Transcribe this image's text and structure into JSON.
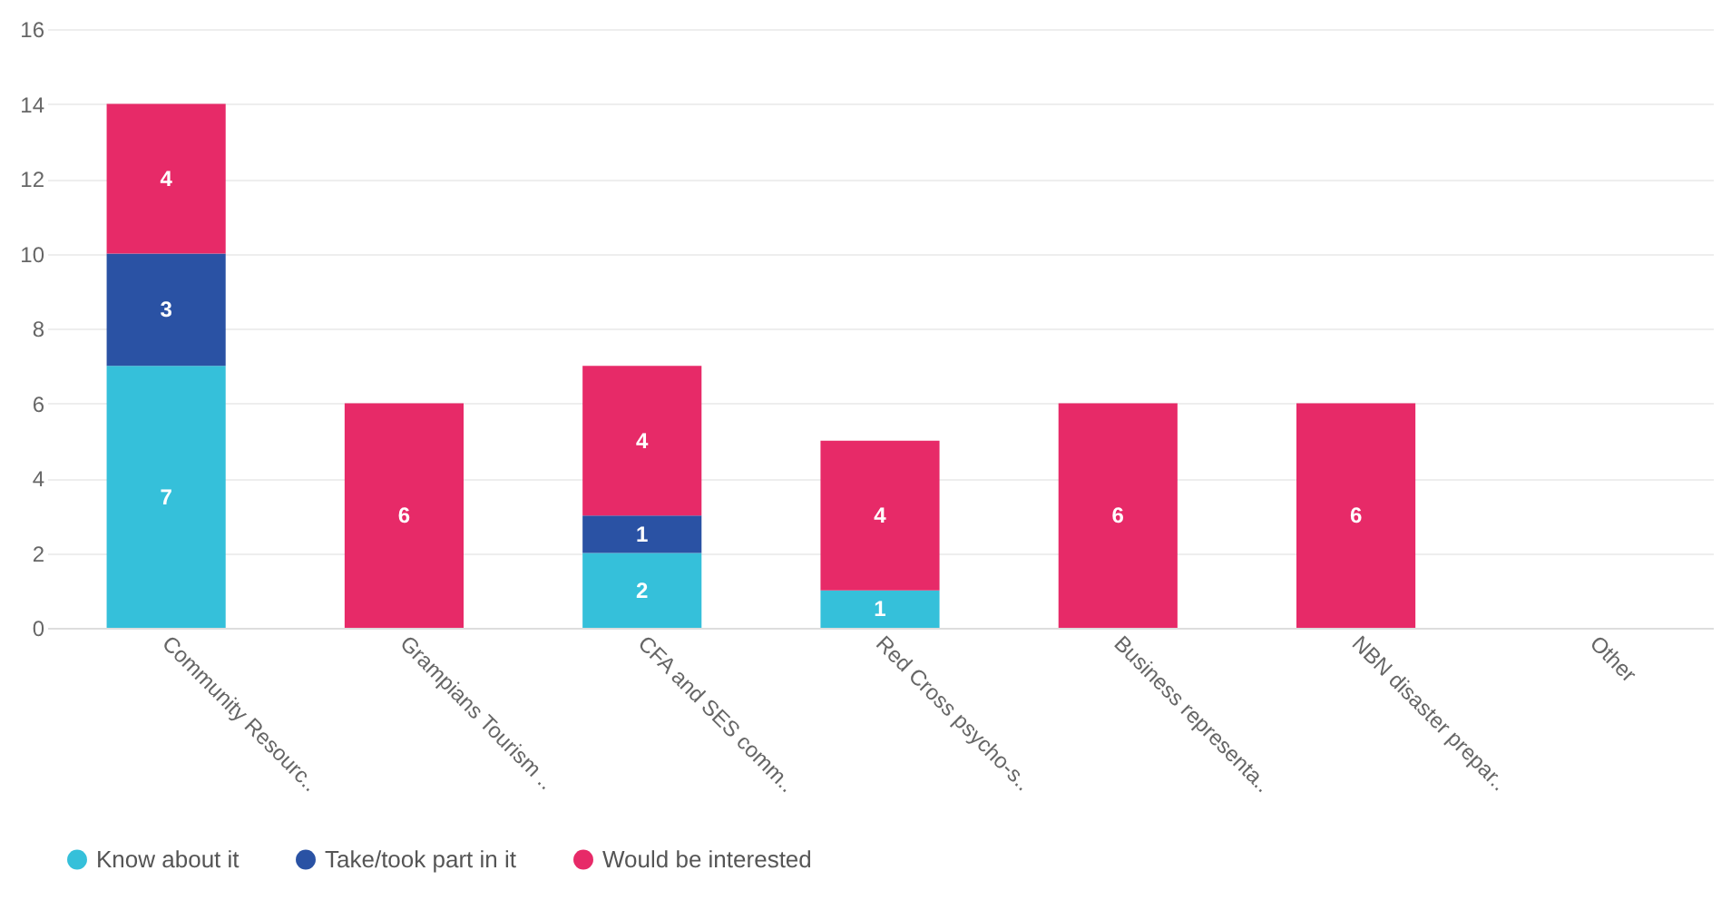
{
  "chart_data": {
    "type": "bar",
    "stacked": true,
    "categories": [
      "Community Resourc..",
      "Grampians Tourism ..",
      "CFA and SES comm..",
      "Red Cross psycho-s..",
      "Business representa..",
      "NBN disaster prepar..",
      "Other"
    ],
    "series": [
      {
        "name": "Know about it",
        "color": "#35c0da",
        "values": [
          7,
          null,
          2,
          1,
          null,
          null,
          null
        ]
      },
      {
        "name": "Take/took part in it",
        "color": "#2a52a4",
        "values": [
          3,
          null,
          1,
          null,
          null,
          null,
          null
        ]
      },
      {
        "name": "Would be interested",
        "color": "#e72a68",
        "values": [
          4,
          6,
          4,
          4,
          6,
          6,
          null
        ]
      }
    ],
    "ylim": [
      0,
      16
    ],
    "yticks": [
      0,
      2,
      4,
      6,
      8,
      10,
      12,
      14,
      16
    ],
    "grid": "y",
    "legend": "bottom",
    "data_labels": true
  }
}
